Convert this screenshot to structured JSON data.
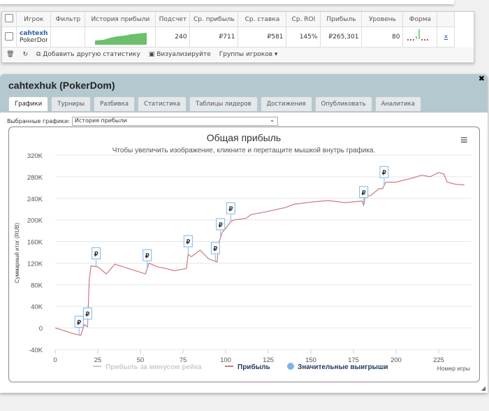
{
  "table": {
    "headers": [
      "Игрок",
      "Фильтр",
      "История прибыли",
      "Подсчет",
      "Ср. прибыль",
      "Ср. ставка",
      "Ср. ROI",
      "Прибыль",
      "Уровень",
      "Форма"
    ],
    "row": {
      "player_name": "cahtexh",
      "player_site": "PokerDon",
      "count": "240",
      "avg_profit": "₽711",
      "avg_stake": "₽581",
      "avg_roi": "145%",
      "profit": "₽265,301",
      "level": "80",
      "remove": "x"
    },
    "toolbar": {
      "add_stat": "Добавить другую статистику",
      "visualize": "Визуализируйте",
      "groups": "Группы игроков ▾"
    },
    "colors": {
      "sparkline": "#6cbf6c",
      "form_positive": "#7ed67e",
      "form_negative": "#c0505a"
    }
  },
  "window": {
    "title": "cahtexhuk (PokerDom)",
    "close": "✖",
    "tabs": [
      "Графики",
      "Турниры",
      "Разбивка",
      "Статистика",
      "Таблицы лидеров",
      "Достижения",
      "Опубликовать",
      "Аналитика"
    ],
    "active_tab": 0,
    "selected_charts_label": "Выбранные графики:",
    "selected_chart": "История прибыли"
  },
  "chart_data": {
    "type": "line",
    "title": "Общая прибыль",
    "subtitle": "Чтобы увеличить изображение, кликните и перетащите мышкой внутрь графика.",
    "xlabel": "Номер игры",
    "ylabel": "Суммарный итог (RUB)",
    "xlim": [
      0,
      242
    ],
    "ylim": [
      -40000,
      320000
    ],
    "xticks": [
      "0",
      "25",
      "50",
      "75",
      "100",
      "125",
      "150",
      "175",
      "200",
      "225"
    ],
    "yticks": [
      "-40K",
      "0",
      "40K",
      "80K",
      "120K",
      "160K",
      "200K",
      "240K",
      "280K",
      "320K"
    ],
    "grid": "horizontal",
    "legend": {
      "placement": "bottom",
      "items": [
        "Прибыль за минусом рейка",
        "Прибыль",
        "Значительные выигрыши"
      ]
    },
    "series": [
      {
        "name": "Прибыль",
        "color": "#c9787f",
        "x": [
          0,
          5,
          10,
          15,
          17,
          19,
          20,
          21,
          25,
          30,
          35,
          45,
          53,
          55,
          60,
          65,
          70,
          77,
          78,
          80,
          85,
          90,
          95,
          96,
          98,
          100,
          103,
          105,
          112,
          115,
          125,
          135,
          140,
          150,
          160,
          170,
          180,
          181,
          182,
          185,
          190,
          192,
          194,
          200,
          210,
          215,
          220,
          225,
          228,
          230,
          235,
          240
        ],
        "y": [
          0,
          -5000,
          -10000,
          -14000,
          6000,
          2000,
          90000,
          115000,
          113000,
          100000,
          118000,
          108000,
          100000,
          120000,
          113000,
          110000,
          106000,
          110000,
          136000,
          132000,
          144000,
          128000,
          122000,
          158000,
          177000,
          184000,
          197000,
          200000,
          203000,
          210000,
          216000,
          223000,
          229000,
          233000,
          236000,
          232000,
          235000,
          227000,
          245000,
          245000,
          258000,
          258000,
          270000,
          270000,
          278000,
          283000,
          280000,
          288000,
          285000,
          270000,
          266000,
          265000
        ]
      }
    ],
    "big_wins": {
      "name": "Значительные выигрыши",
      "symbol": "₽",
      "color": "#7cb5ec",
      "x": [
        14,
        19,
        24,
        54,
        78,
        94,
        97,
        103,
        181,
        193
      ]
    },
    "menu_icon": "hamburger-icon"
  }
}
